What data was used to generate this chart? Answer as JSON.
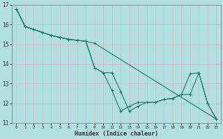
{
  "xlabel": "Humidex (Indice chaleur)",
  "background_color": "#b2e0e0",
  "grid_color": "#d8b8b8",
  "line_color": "#1a7a6a",
  "xlim": [
    -0.5,
    23.5
  ],
  "ylim": [
    11,
    17
  ],
  "yticks": [
    11,
    12,
    13,
    14,
    15,
    16,
    17
  ],
  "xticks": [
    0,
    1,
    2,
    3,
    4,
    5,
    6,
    7,
    8,
    9,
    10,
    11,
    12,
    13,
    14,
    15,
    16,
    17,
    18,
    19,
    20,
    21,
    22,
    23
  ],
  "series1_x": [
    0,
    1,
    2,
    3,
    4,
    5,
    6,
    7,
    8,
    9,
    10,
    11,
    12,
    13,
    14,
    15,
    16,
    17,
    18,
    19,
    20,
    21,
    22,
    23
  ],
  "series1_y": [
    16.8,
    15.9,
    15.75,
    15.6,
    15.45,
    15.35,
    15.25,
    15.2,
    15.15,
    13.8,
    13.55,
    12.65,
    11.6,
    11.85,
    12.05,
    12.05,
    12.05,
    12.2,
    12.25,
    12.45,
    13.5,
    13.55,
    12.0,
    11.2
  ],
  "series2_x": [
    0,
    1,
    2,
    3,
    4,
    5,
    6,
    7,
    8,
    9,
    23
  ],
  "series2_y": [
    16.8,
    15.9,
    15.75,
    15.6,
    15.45,
    15.35,
    15.25,
    15.2,
    15.15,
    15.05,
    11.2
  ],
  "series3_x": [
    0,
    1,
    2,
    3,
    4,
    5,
    6,
    7,
    8,
    9,
    10,
    11,
    12,
    13,
    14,
    15,
    16,
    17,
    18,
    19,
    20,
    21,
    22,
    23
  ],
  "series3_y": [
    16.8,
    15.9,
    15.75,
    15.6,
    15.45,
    15.35,
    15.25,
    15.2,
    15.15,
    13.8,
    13.55,
    13.55,
    12.6,
    11.6,
    11.85,
    12.05,
    12.05,
    12.2,
    12.25,
    12.45,
    12.45,
    13.55,
    12.0,
    11.2
  ]
}
